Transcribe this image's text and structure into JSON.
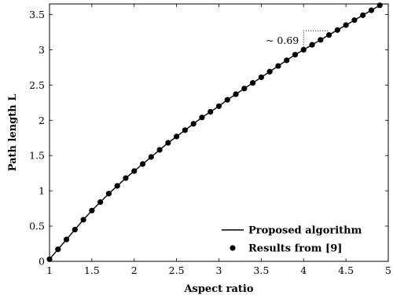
{
  "chart_data": {
    "type": "line",
    "xlabel": "Aspect ratio",
    "ylabel": "Path length L",
    "xlim": [
      1,
      5
    ],
    "ylim": [
      0,
      3.65
    ],
    "xticks": [
      "1",
      "1.5",
      "2",
      "2.5",
      "3",
      "3.5",
      "4",
      "4.5",
      "5"
    ],
    "yticks": [
      "0",
      "0.5",
      "1",
      "1.5",
      "2",
      "2.5",
      "3",
      "3.5"
    ],
    "grid": false,
    "legend_position": "bottom-right",
    "annotation": {
      "text": "~ 0.69",
      "x_from": 4.0,
      "x_to": 4.3,
      "y_value": 3.0
    },
    "series": [
      {
        "name": "Proposed algorithm",
        "style": "line",
        "color": "#000000",
        "x": [
          1.0,
          1.1,
          1.2,
          1.3,
          1.4,
          1.5,
          1.6,
          1.7,
          1.8,
          1.9,
          2.0,
          2.1,
          2.2,
          2.3,
          2.4,
          2.5,
          2.6,
          2.7,
          2.8,
          2.9,
          3.0,
          3.1,
          3.2,
          3.3,
          3.4,
          3.5,
          3.6,
          3.7,
          3.8,
          3.9,
          4.0,
          4.1,
          4.2,
          4.3,
          4.4,
          4.5,
          4.6,
          4.7,
          4.8,
          4.9
        ],
        "y": [
          0.03,
          0.17,
          0.31,
          0.45,
          0.59,
          0.72,
          0.84,
          0.96,
          1.07,
          1.18,
          1.28,
          1.38,
          1.48,
          1.58,
          1.68,
          1.77,
          1.86,
          1.95,
          2.04,
          2.12,
          2.2,
          2.29,
          2.37,
          2.45,
          2.53,
          2.61,
          2.69,
          2.77,
          2.85,
          2.93,
          3.0,
          3.07,
          3.14,
          3.21,
          3.28,
          3.35,
          3.42,
          3.49,
          3.56,
          3.63
        ]
      },
      {
        "name": "Results from",
        "reference": "[9]",
        "style": "markers",
        "color": "#000000",
        "x": [
          1.0,
          1.1,
          1.2,
          1.3,
          1.4,
          1.5,
          1.6,
          1.7,
          1.8,
          1.9,
          2.0,
          2.1,
          2.2,
          2.3,
          2.4,
          2.5,
          2.6,
          2.7,
          2.8,
          2.9,
          3.0,
          3.1,
          3.2,
          3.3,
          3.4,
          3.5,
          3.6,
          3.7,
          3.8,
          3.9,
          4.0,
          4.1,
          4.2,
          4.3,
          4.4,
          4.5,
          4.6,
          4.7,
          4.8,
          4.9
        ],
        "y": [
          0.03,
          0.17,
          0.31,
          0.45,
          0.59,
          0.72,
          0.84,
          0.96,
          1.07,
          1.18,
          1.28,
          1.38,
          1.48,
          1.58,
          1.68,
          1.77,
          1.86,
          1.95,
          2.04,
          2.12,
          2.2,
          2.29,
          2.37,
          2.45,
          2.53,
          2.61,
          2.69,
          2.77,
          2.85,
          2.93,
          3.0,
          3.07,
          3.14,
          3.21,
          3.28,
          3.35,
          3.42,
          3.49,
          3.56,
          3.63
        ]
      }
    ]
  }
}
